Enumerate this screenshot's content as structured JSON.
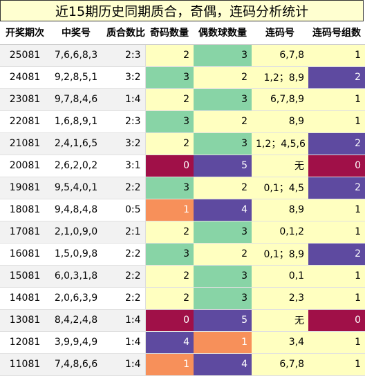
{
  "title": "近15期历史同期质合，奇偶，连码分析统计",
  "headers": [
    "开奖期次",
    "中奖号",
    "质合数比",
    "奇码数量",
    "偶数球数量",
    "连码号",
    "连码号组数"
  ],
  "rows": [
    {
      "issue": "25081",
      "numbers": "7,6,6,8,3",
      "ratio": "2:3",
      "odd": 2,
      "even": 3,
      "consecutive": "6,7,8",
      "groups": 1
    },
    {
      "issue": "24081",
      "numbers": "9,2,8,5,1",
      "ratio": "3:2",
      "odd": 3,
      "even": 2,
      "consecutive": "1,2；8,9",
      "groups": 2
    },
    {
      "issue": "23081",
      "numbers": "9,7,8,4,6",
      "ratio": "1:4",
      "odd": 2,
      "even": 3,
      "consecutive": "6,7,8,9",
      "groups": 1
    },
    {
      "issue": "22081",
      "numbers": "1,6,8,9,1",
      "ratio": "2:3",
      "odd": 3,
      "even": 2,
      "consecutive": "8,9",
      "groups": 1
    },
    {
      "issue": "21081",
      "numbers": "2,4,1,6,5",
      "ratio": "3:2",
      "odd": 2,
      "even": 3,
      "consecutive": "1,2；4,5,6",
      "groups": 2
    },
    {
      "issue": "20081",
      "numbers": "2,6,2,0,2",
      "ratio": "3:1",
      "odd": 0,
      "even": 5,
      "consecutive": "无",
      "groups": 0
    },
    {
      "issue": "19081",
      "numbers": "9,5,4,0,1",
      "ratio": "2:2",
      "odd": 3,
      "even": 2,
      "consecutive": "0,1；4,5",
      "groups": 2
    },
    {
      "issue": "18081",
      "numbers": "9,4,8,4,8",
      "ratio": "0:5",
      "odd": 1,
      "even": 4,
      "consecutive": "8,9",
      "groups": 1
    },
    {
      "issue": "17081",
      "numbers": "2,1,0,9,0",
      "ratio": "2:1",
      "odd": 2,
      "even": 3,
      "consecutive": "0,1,2",
      "groups": 1
    },
    {
      "issue": "16081",
      "numbers": "1,5,0,9,8",
      "ratio": "2:2",
      "odd": 3,
      "even": 2,
      "consecutive": "0,1；8,9",
      "groups": 2
    },
    {
      "issue": "15081",
      "numbers": "6,0,3,1,8",
      "ratio": "2:2",
      "odd": 2,
      "even": 3,
      "consecutive": "0,1",
      "groups": 1
    },
    {
      "issue": "14081",
      "numbers": "2,0,6,3,9",
      "ratio": "2:2",
      "odd": 2,
      "even": 3,
      "consecutive": "2,3",
      "groups": 1
    },
    {
      "issue": "13081",
      "numbers": "8,4,2,4,8",
      "ratio": "1:4",
      "odd": 0,
      "even": 5,
      "consecutive": "无",
      "groups": 0
    },
    {
      "issue": "12081",
      "numbers": "3,9,9,4,9",
      "ratio": "1:4",
      "odd": 4,
      "even": 1,
      "consecutive": "3,4",
      "groups": 1
    },
    {
      "issue": "11081",
      "numbers": "7,4,8,6,6",
      "ratio": "1:4",
      "odd": 1,
      "even": 4,
      "consecutive": "6,7,8",
      "groups": 1
    }
  ],
  "colors": {
    "zero": "#a01048",
    "one": "#f7905a",
    "two": "#ffffc0",
    "three": "#88d4a6",
    "four_five": "#5e4aa0"
  }
}
